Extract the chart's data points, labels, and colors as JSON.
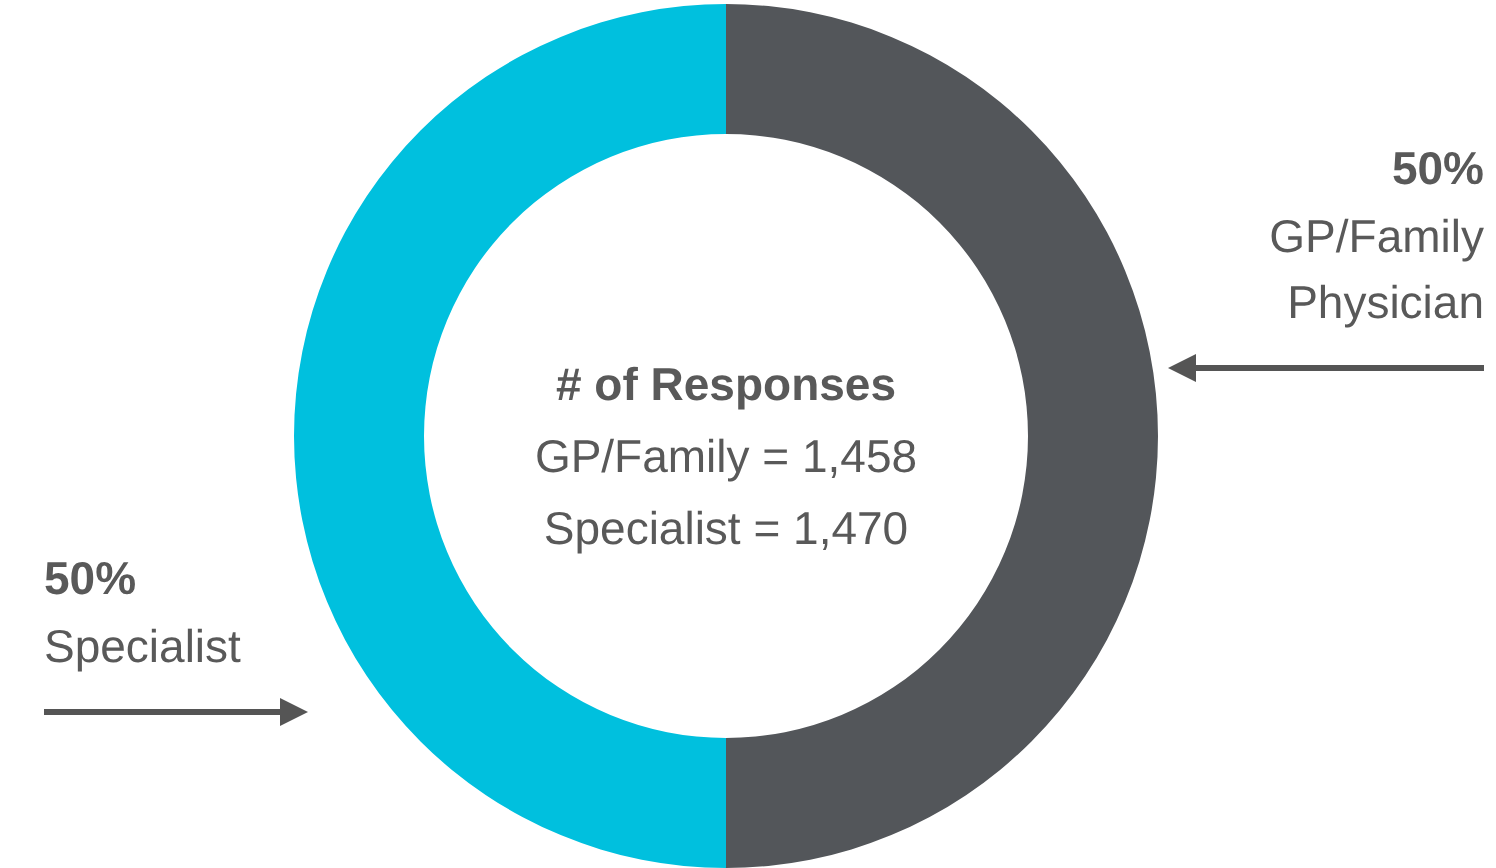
{
  "chart_data": {
    "type": "donut",
    "categories": [
      "GP/Family Physician",
      "Specialist"
    ],
    "values": [
      50,
      50
    ],
    "colors": [
      "#53565a",
      "#00c0de"
    ],
    "value_labels": [
      "50%",
      "50%"
    ],
    "annotations": [
      "# of Responses",
      "GP/Family = 1,458",
      "Specialist = 1,470"
    ]
  }
}
